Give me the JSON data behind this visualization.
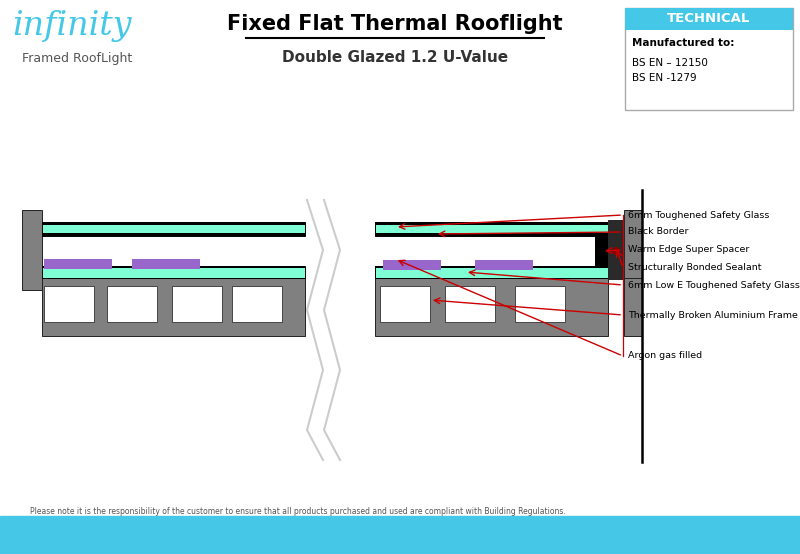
{
  "title": "Fixed Flat Thermal Rooflight",
  "subtitle": "Double Glazed 1.2 U-Value",
  "brand_name": "infinity",
  "brand_sub": "Framed RoofLight",
  "tech_box_title": "TECHNICAL",
  "tech_line1": "Manufactured to:",
  "tech_line2": "BS EN – 12150",
  "tech_line3": "BS EN -1279",
  "footer": "Please note it is the responsibility of the customer to ensure that all products purchased and used are compliant with Building Regulations.",
  "labels": [
    "6mm Toughened Safety Glass",
    "Black Border",
    "Warm Edge Super Spacer",
    "Structurally Bonded Sealant",
    "6mm Low E Toughened Safety Glass",
    "Thermally Broken Aluminium Frame",
    "Argon gas filled"
  ],
  "bg_color": "#ffffff",
  "footer_bar_color": "#45C8E8",
  "technical_header_color": "#45C8E8",
  "glass_color": "#7FFFD4",
  "frame_color": "#707070",
  "frame_dark": "#222222",
  "purple_color": "#9966CC",
  "red_arrow": "#CC0000"
}
